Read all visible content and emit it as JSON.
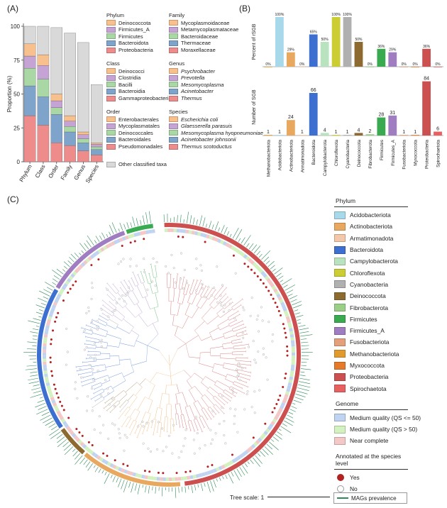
{
  "panels": {
    "a": "(A)",
    "b": "(B)",
    "c": "(C)"
  },
  "panel_a": {
    "ylabel": "Proportion (%)",
    "other_label": "Other classified taxa",
    "legend": {
      "phylum": {
        "title": "Phylum",
        "items": [
          "Deinococcota",
          "Firmicutes_A",
          "Firmicutes",
          "Bacteroidota",
          "Proteobacteria"
        ]
      },
      "class": {
        "title": "Class",
        "items": [
          "Deinococci",
          "Clostridia",
          "Bacilli",
          "Bacteroidia",
          "Gammaproteobacteria"
        ]
      },
      "order": {
        "title": "Order",
        "items": [
          "Enterobacterales",
          "Mycoplasmatales",
          "Deinococcales",
          "Bacteroidales",
          "Pseudomonadales"
        ]
      },
      "family": {
        "title": "Family",
        "items": [
          "Mycoplasmoidaceae",
          "Metamycoplasmataceae",
          "Bacteroidaceae",
          "Thermaceae",
          "Moraxellaceae"
        ]
      },
      "genus": {
        "title": "Genus",
        "items": [
          "Psychrobacter",
          "Prevotella",
          "Mesomycoplasma",
          "Acinetobacter",
          "Thermus"
        ]
      },
      "species": {
        "title": "Species",
        "items": [
          "Escherichia coli",
          "Glaesserella parasuis",
          "Mesomycoplasma hyopneumoniae",
          "Acinetobacter johnsonii",
          "Thermus scotoductus"
        ]
      }
    },
    "legend_colors": [
      "#f8c08c",
      "#c5a3d5",
      "#a9d8a4",
      "#7fa4cc",
      "#ee8c8c"
    ],
    "other_color": "#d9d9d9"
  },
  "chart_data": [
    {
      "type": "bar",
      "stacked": true,
      "ylabel": "Proportion (%)",
      "ylim": [
        0,
        100
      ],
      "yticks": [
        0,
        25,
        50,
        75,
        100
      ],
      "categories": [
        "Phylum",
        "Class",
        "Order",
        "Family",
        "Genus",
        "Species"
      ],
      "series": [
        {
          "name": "Proteobacteria / Gammaproteobacteria / Pseudomonadales / Moraxellaceae / Thermus / Thermus scotoductus",
          "color": "#ee8c8c",
          "values": [
            34,
            27,
            14,
            12,
            8,
            5
          ]
        },
        {
          "name": "Bacteroidota / Bacteroidia / Bacteroidales / Thermaceae / Acinetobacter / Acinetobacter johnsonii",
          "color": "#7fa4cc",
          "values": [
            22,
            21,
            21,
            10,
            6,
            4
          ]
        },
        {
          "name": "Firmicutes / Bacilli / Deinococcales / Bacteroidaceae / Mesomycoplasma / Mesomycoplasma hyopneumoniae",
          "color": "#a9d8a4",
          "values": [
            13,
            13,
            5,
            4,
            3,
            2
          ]
        },
        {
          "name": "Firmicutes_A / Clostridia / Mycoplasmatales / Metamycoplasmataceae / Prevotella / Glaesserella parasuis",
          "color": "#c5a3d5",
          "values": [
            9,
            10,
            5,
            4,
            3,
            2
          ]
        },
        {
          "name": "Deinococcota / Deinococci / Enterobacterales / Mycoplasmoidaceae / Psychrobacter / Escherichia coli",
          "color": "#f8c08c",
          "values": [
            9,
            8,
            5,
            4,
            2,
            1
          ]
        },
        {
          "name": "Other classified taxa",
          "color": "#d9d9d9",
          "values": [
            13,
            21,
            49,
            61,
            66,
            43
          ]
        }
      ]
    },
    {
      "type": "bar",
      "ylabel": "Percent of rSGB",
      "categories": [
        "Methanobacteriota",
        "Acidobacteriota",
        "Actinobacteriota",
        "Armatimonadota",
        "Bacteroidota",
        "Campylobacterota",
        "Chloroflexota",
        "Cyanobacteria",
        "Deinococcota",
        "Fibrobacterota",
        "Firmicutes",
        "Firmicutes_A",
        "Fusobacteriota",
        "Myxococcota",
        "Proteobacteria",
        "Spirochaetota"
      ],
      "values": [
        0,
        100,
        29,
        0,
        65,
        50,
        100,
        100,
        50,
        0,
        36,
        29,
        0,
        0,
        36,
        0
      ],
      "labels": [
        "0%",
        "100%",
        "29%",
        "0%",
        "65%",
        "50%",
        "100%",
        "100%",
        "50%",
        "0%",
        "36%",
        "29%",
        "0%",
        "0%",
        "36%",
        "0%"
      ],
      "colors": [
        "#e0a13a",
        "#a8d9ea",
        "#e8a860",
        "#f3c8a8",
        "#3d6fd0",
        "#b9e3bf",
        "#cccc33",
        "#b0b0b0",
        "#8c6a30",
        "#9bcf88",
        "#3aaa50",
        "#a07cc0",
        "#e3a07a",
        "#e47a2a",
        "#cc5050",
        "#e86060"
      ]
    },
    {
      "type": "bar",
      "ylabel": "Number of SGB",
      "categories": [
        "Methanobacteriota",
        "Acidobacteriota",
        "Actinobacteriota",
        "Armatimonadota",
        "Bacteroidota",
        "Campylobacterota",
        "Chloroflexota",
        "Cyanobacteria",
        "Deinococcota",
        "Fibrobacterota",
        "Firmicutes",
        "Firmicutes_A",
        "Fusobacteriota",
        "Myxococcota",
        "Proteobacteria",
        "Spirochaetota"
      ],
      "values": [
        1,
        1,
        24,
        1,
        66,
        4,
        1,
        1,
        4,
        2,
        28,
        31,
        1,
        1,
        84,
        6
      ],
      "colors": [
        "#e0a13a",
        "#a8d9ea",
        "#e8a860",
        "#f3c8a8",
        "#3d6fd0",
        "#b9e3bf",
        "#cccc33",
        "#b0b0b0",
        "#8c6a30",
        "#9bcf88",
        "#3aaa50",
        "#a07cc0",
        "#e3a07a",
        "#e47a2a",
        "#cc5050",
        "#e86060"
      ]
    }
  ],
  "panel_c": {
    "phylum_title": "Phylum",
    "phylum": [
      {
        "name": "Acidobacteriota",
        "color": "#a8d9ea"
      },
      {
        "name": "Actinobacteriota",
        "color": "#e8a860"
      },
      {
        "name": "Armatimonadota",
        "color": "#f3c8a8"
      },
      {
        "name": "Bacteroidota",
        "color": "#3d6fd0"
      },
      {
        "name": "Campylobacterota",
        "color": "#b9e3bf"
      },
      {
        "name": "Chloroflexota",
        "color": "#cccc33"
      },
      {
        "name": "Cyanobacteria",
        "color": "#b0b0b0"
      },
      {
        "name": "Deinococcota",
        "color": "#8c6a30"
      },
      {
        "name": "Fibrobacterota",
        "color": "#9bcf88"
      },
      {
        "name": "Firmicutes",
        "color": "#3aaa50"
      },
      {
        "name": "Firmicutes_A",
        "color": "#a07cc0"
      },
      {
        "name": "Fusobacteriota",
        "color": "#e3a07a"
      },
      {
        "name": "Methanobacteriota",
        "color": "#e09a2e"
      },
      {
        "name": "Myxococcota",
        "color": "#e47a2a"
      },
      {
        "name": "Proteobacteria",
        "color": "#cc5050"
      },
      {
        "name": "Spirochaetota",
        "color": "#e86060"
      }
    ],
    "genome_title": "Genome",
    "genome": [
      {
        "name": "Medium quality (QS <= 50)",
        "color": "#c0d4f2"
      },
      {
        "name": "Medium quality (QS > 50)",
        "color": "#d4f2c0"
      },
      {
        "name": "Near complete",
        "color": "#f5c8c8"
      }
    ],
    "species_title": "Annotated at the species level",
    "species": [
      {
        "name": "Yes",
        "color": "#b22222"
      },
      {
        "name": "No",
        "color": "#ffffff"
      }
    ],
    "tree_scale_label": "Tree scale: 1",
    "prevalence_label": "MAGs prevalence",
    "prevalence_color": "#2e8b57",
    "ring_arcs": [
      {
        "phylum": "Proteobacteria",
        "color": "#cc5050",
        "start_deg": 268,
        "end_deg": 443
      },
      {
        "phylum": "Actinobacteriota",
        "color": "#e8a860",
        "start_deg": 445,
        "end_deg": 490
      },
      {
        "phylum": "Deinococcota",
        "color": "#8c6a30",
        "start_deg": 491,
        "end_deg": 505
      },
      {
        "phylum": "Bacteroidota",
        "color": "#3d6fd0",
        "start_deg": 506,
        "end_deg": 570
      },
      {
        "phylum": "Firmicutes_A",
        "color": "#a07cc0",
        "start_deg": 571,
        "end_deg": 610
      },
      {
        "phylum": "Firmicutes",
        "color": "#3aaa50",
        "start_deg": 611,
        "end_deg": 623
      }
    ]
  }
}
